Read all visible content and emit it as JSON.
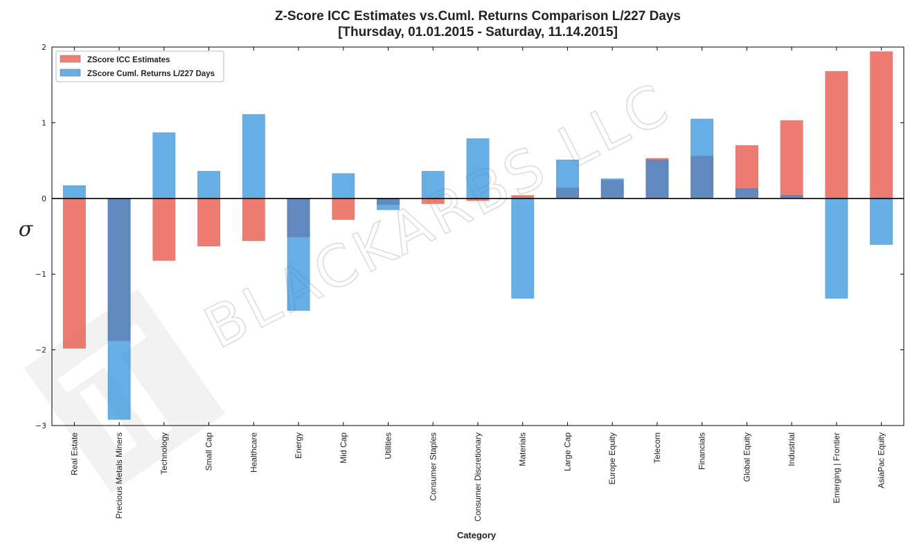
{
  "chart_data": {
    "type": "bar",
    "title": "Z-Score ICC Estimates vs.Cuml. Returns Comparison L/227 Days",
    "subtitle": "[Thursday, 01.01.2015 - Saturday, 11.14.2015]",
    "xlabel": "Category",
    "ylabel": "σ",
    "ylim": [
      -3,
      2
    ],
    "yticks": [
      2,
      1,
      0,
      -1,
      -2,
      -3
    ],
    "grid": false,
    "legend_position": "top-left",
    "watermark": "BLACKARBS LLC",
    "categories": [
      "Real Estate",
      "Precious Metals Miners",
      "Technology",
      "Small Cap",
      "Healthcare",
      "Energy",
      "Mid Cap",
      "Utilities",
      "Consumer Staples",
      "Consumer Discretionary",
      "Materials",
      "Large Cap",
      "Europe Equity",
      "Telecom",
      "Financials",
      "Global Equity",
      "Industrial",
      "Emerging | Frontier",
      "AsiaPac Equity"
    ],
    "series": [
      {
        "name": "ZScore ICC Estimates",
        "color": "#e8574a",
        "values": [
          -1.98,
          -1.88,
          -0.82,
          -0.63,
          -0.56,
          -0.51,
          -0.28,
          -0.08,
          -0.07,
          -0.03,
          0.04,
          0.14,
          0.24,
          0.53,
          0.56,
          0.7,
          1.03,
          1.68,
          1.94
        ]
      },
      {
        "name": "ZScore Cuml. Returns L/227 Days",
        "color": "#2b8fd9",
        "values": [
          0.17,
          -2.92,
          0.87,
          0.36,
          1.11,
          -1.48,
          0.33,
          -0.15,
          0.36,
          0.79,
          -1.32,
          0.51,
          0.26,
          0.51,
          1.05,
          0.13,
          0.04,
          -1.32,
          -0.61
        ]
      }
    ]
  }
}
